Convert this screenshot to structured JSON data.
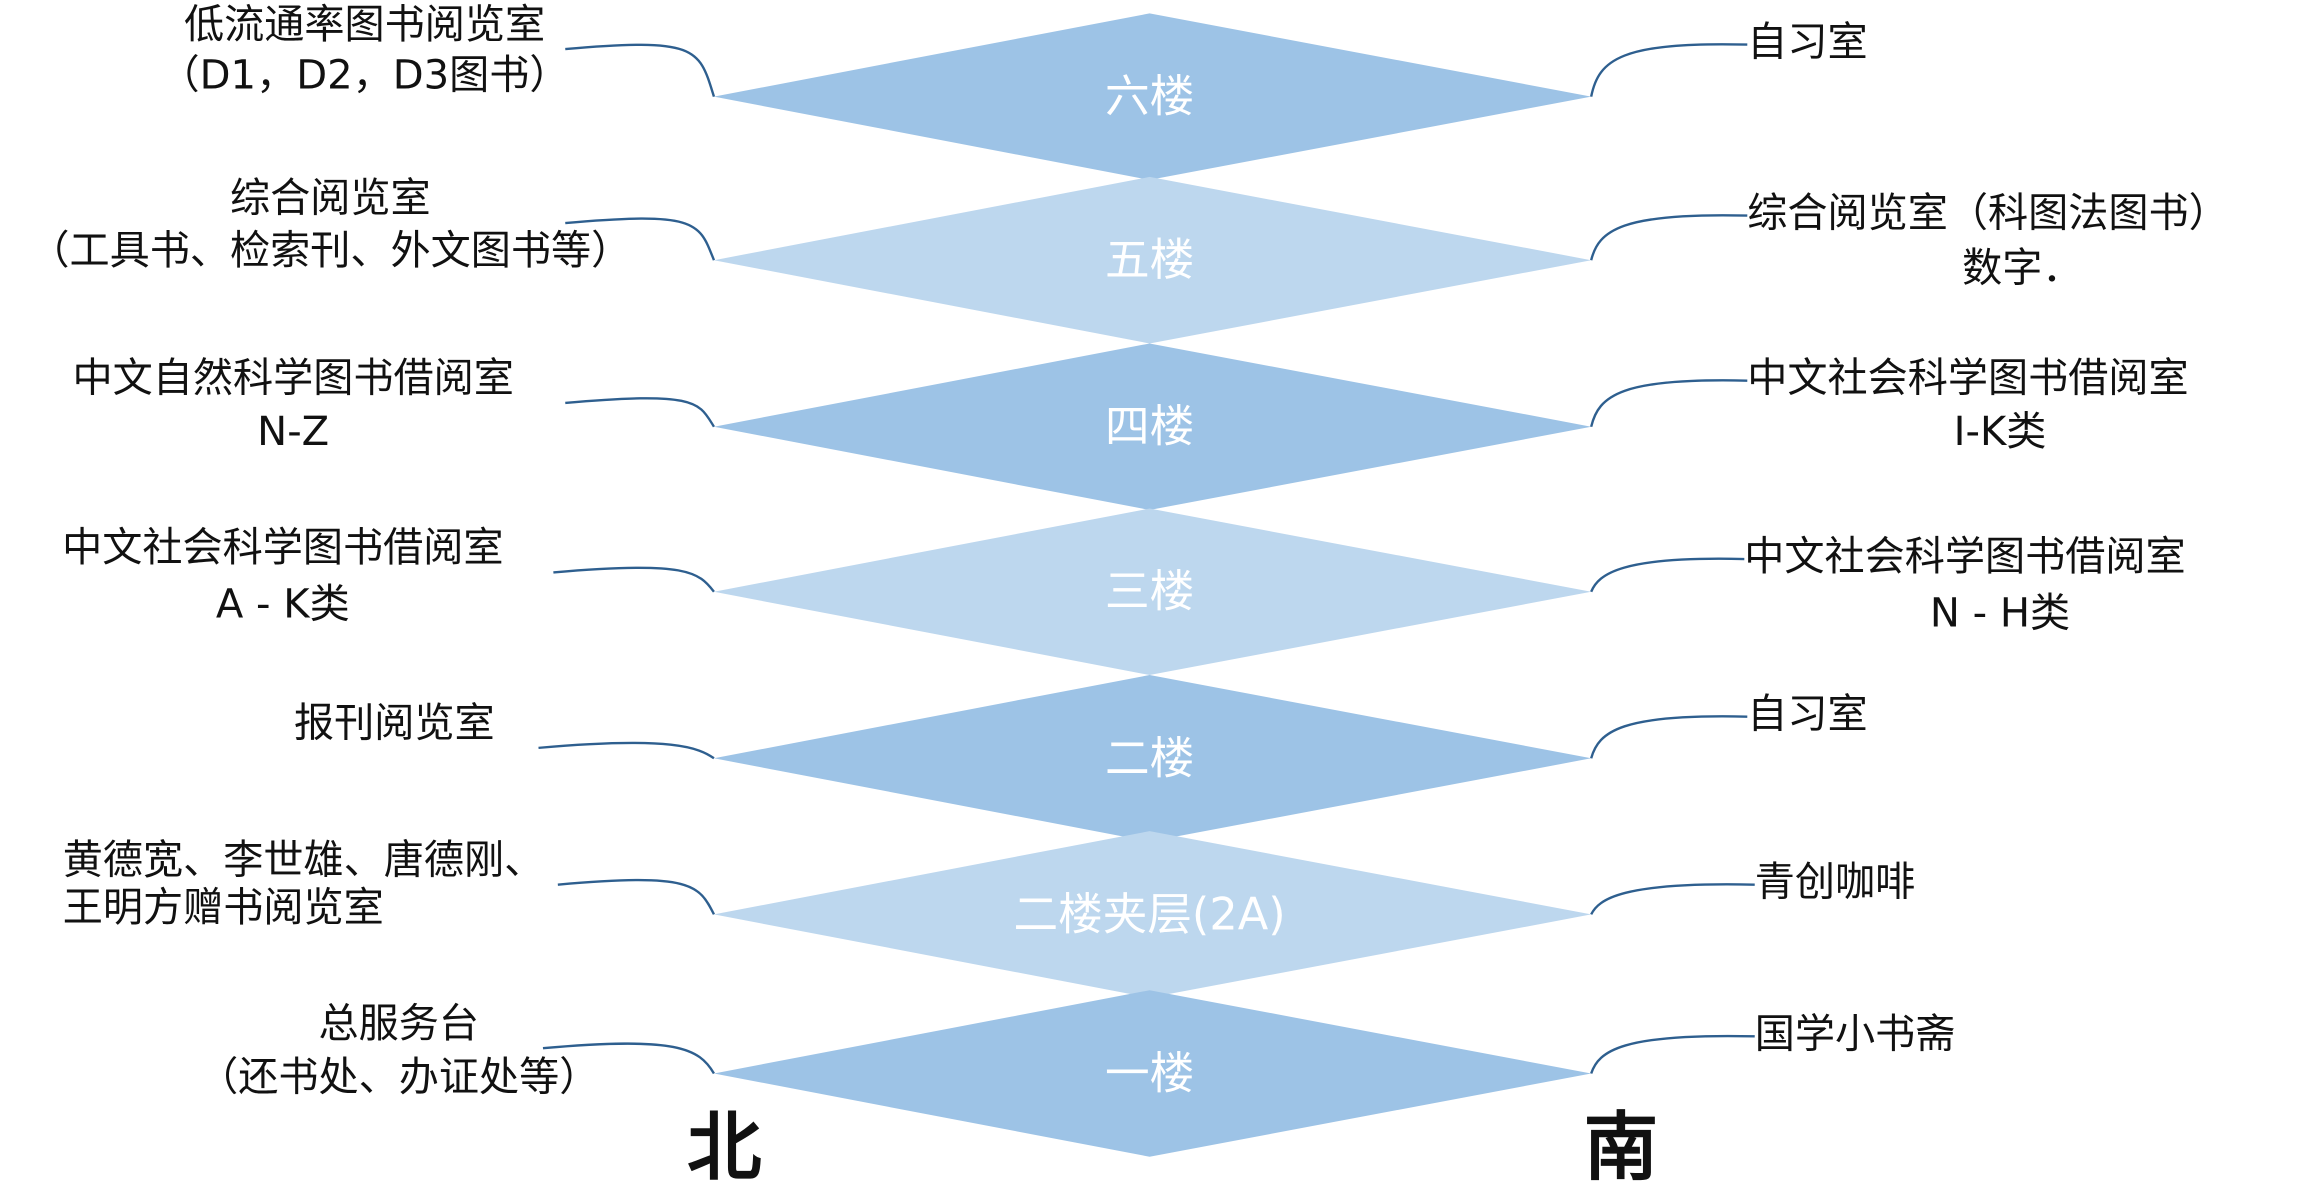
{
  "floors": [
    {
      "label": "六楼",
      "north": [
        "低流通率图书阅览室",
        "（D1，D2，D3图书）"
      ],
      "south": [
        "自习室"
      ]
    },
    {
      "label": "五楼",
      "north": [
        "综合阅览室",
        "（工具书、检索刊、外文图书等）"
      ],
      "south": [
        "综合阅览室（科图法图书）",
        "数字．"
      ]
    },
    {
      "label": "四楼",
      "north": [
        "中文自然科学图书借阅室",
        "N-Z"
      ],
      "south": [
        "中文社会科学图书借阅室",
        "I-K类"
      ]
    },
    {
      "label": "三楼",
      "north": [
        "中文社会科学图书借阅室",
        "A - K类"
      ],
      "south": [
        "中文社会科学图书借阅室",
        "N - H类"
      ]
    },
    {
      "label": "二楼",
      "north": [
        "报刊阅览室"
      ],
      "south": [
        "自习室"
      ]
    },
    {
      "label": "二楼夹层(2A)",
      "north": [
        "黄德宽、李世雄、唐德刚、",
        "王明方赠书阅览室"
      ],
      "south": [
        "青创咖啡"
      ]
    },
    {
      "label": "一楼",
      "north": [
        "总服务台",
        "（还书处、办证处等）"
      ],
      "south": [
        "国学小书斋"
      ]
    }
  ],
  "directions": {
    "north": "北",
    "south": "南"
  }
}
